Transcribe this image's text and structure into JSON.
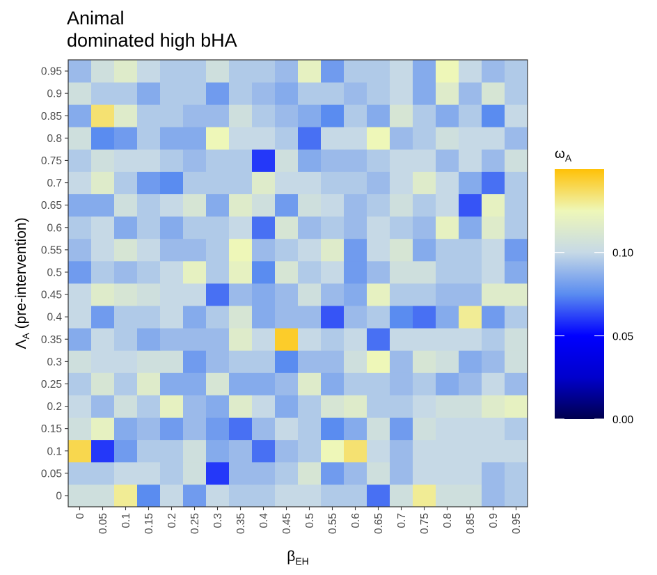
{
  "chart_data": {
    "type": "heatmap",
    "title": [
      "Animal",
      "dominated high bHA"
    ],
    "xlabel": {
      "main": "β",
      "sub": "EH"
    },
    "ylabel": {
      "main": "Λ",
      "sub": "A",
      "rest": " (pre-intervention)"
    },
    "x_categories": [
      "0",
      "0.05",
      "0.1",
      "0.15",
      "0.2",
      "0.25",
      "0.3",
      "0.35",
      "0.4",
      "0.45",
      "0.5",
      "0.55",
      "0.6",
      "0.65",
      "0.7",
      "0.75",
      "0.8",
      "0.85",
      "0.9",
      "0.95"
    ],
    "y_categories": [
      "0",
      "0.05",
      "0.1",
      "0.15",
      "0.2",
      "0.25",
      "0.3",
      "0.35",
      "0.4",
      "0.45",
      "0.5",
      "0.55",
      "0.6",
      "0.65",
      "0.7",
      "0.75",
      "0.8",
      "0.85",
      "0.9",
      "0.95"
    ],
    "values": [
      [
        0.105,
        0.105,
        0.13,
        0.075,
        0.1,
        0.08,
        0.1,
        0.095,
        0.095,
        0.1,
        0.1,
        0.095,
        0.095,
        0.07,
        0.105,
        0.13,
        0.105,
        0.105,
        0.09,
        0.095
      ],
      [
        0.095,
        0.095,
        0.1,
        0.1,
        0.095,
        0.105,
        0.06,
        0.09,
        0.09,
        0.095,
        0.11,
        0.08,
        0.09,
        0.105,
        0.09,
        0.1,
        0.1,
        0.1,
        0.09,
        0.095
      ],
      [
        0.14,
        0.06,
        0.08,
        0.095,
        0.095,
        0.105,
        0.085,
        0.09,
        0.07,
        0.09,
        0.095,
        0.125,
        0.135,
        0.1,
        0.09,
        0.1,
        0.1,
        0.1,
        0.1,
        0.1
      ],
      [
        0.105,
        0.12,
        0.085,
        0.09,
        0.08,
        0.09,
        0.08,
        0.07,
        0.09,
        0.1,
        0.095,
        0.075,
        0.085,
        0.105,
        0.08,
        0.105,
        0.1,
        0.1,
        0.1,
        0.095
      ],
      [
        0.1,
        0.09,
        0.105,
        0.095,
        0.12,
        0.09,
        0.085,
        0.115,
        0.1,
        0.085,
        0.095,
        0.11,
        0.115,
        0.095,
        0.095,
        0.1,
        0.105,
        0.105,
        0.115,
        0.12
      ],
      [
        0.095,
        0.11,
        0.095,
        0.115,
        0.085,
        0.085,
        0.11,
        0.085,
        0.085,
        0.09,
        0.115,
        0.085,
        0.095,
        0.095,
        0.09,
        0.095,
        0.085,
        0.09,
        0.1,
        0.09
      ],
      [
        0.105,
        0.1,
        0.1,
        0.105,
        0.105,
        0.08,
        0.09,
        0.095,
        0.095,
        0.075,
        0.09,
        0.09,
        0.105,
        0.125,
        0.09,
        0.11,
        0.105,
        0.085,
        0.09,
        0.105
      ],
      [
        0.085,
        0.1,
        0.095,
        0.085,
        0.09,
        0.09,
        0.09,
        0.115,
        0.1,
        0.145,
        0.1,
        0.095,
        0.1,
        0.07,
        0.1,
        0.1,
        0.1,
        0.1,
        0.095,
        0.105
      ],
      [
        0.1,
        0.08,
        0.095,
        0.095,
        0.1,
        0.085,
        0.095,
        0.11,
        0.085,
        0.09,
        0.09,
        0.065,
        0.09,
        0.095,
        0.075,
        0.07,
        0.085,
        0.13,
        0.08,
        0.095
      ],
      [
        0.1,
        0.115,
        0.11,
        0.105,
        0.1,
        0.1,
        0.07,
        0.09,
        0.085,
        0.09,
        0.105,
        0.09,
        0.085,
        0.12,
        0.095,
        0.095,
        0.09,
        0.09,
        0.115,
        0.115
      ],
      [
        0.08,
        0.095,
        0.09,
        0.095,
        0.1,
        0.12,
        0.095,
        0.12,
        0.075,
        0.11,
        0.095,
        0.1,
        0.08,
        0.09,
        0.105,
        0.105,
        0.095,
        0.095,
        0.1,
        0.085
      ],
      [
        0.09,
        0.1,
        0.11,
        0.1,
        0.09,
        0.09,
        0.095,
        0.125,
        0.09,
        0.095,
        0.1,
        0.115,
        0.08,
        0.1,
        0.11,
        0.085,
        0.095,
        0.095,
        0.1,
        0.08
      ],
      [
        0.095,
        0.1,
        0.085,
        0.095,
        0.085,
        0.095,
        0.095,
        0.1,
        0.07,
        0.11,
        0.09,
        0.095,
        0.09,
        0.1,
        0.095,
        0.09,
        0.12,
        0.085,
        0.115,
        0.095
      ],
      [
        0.085,
        0.085,
        0.105,
        0.095,
        0.1,
        0.11,
        0.085,
        0.115,
        0.105,
        0.08,
        0.105,
        0.1,
        0.09,
        0.095,
        0.105,
        0.095,
        0.1,
        0.065,
        0.12,
        0.095
      ],
      [
        0.1,
        0.115,
        0.095,
        0.08,
        0.075,
        0.095,
        0.095,
        0.095,
        0.115,
        0.1,
        0.1,
        0.095,
        0.095,
        0.09,
        0.1,
        0.115,
        0.1,
        0.085,
        0.07,
        0.095
      ],
      [
        0.095,
        0.105,
        0.1,
        0.1,
        0.095,
        0.09,
        0.095,
        0.095,
        0.06,
        0.105,
        0.085,
        0.09,
        0.09,
        0.095,
        0.1,
        0.1,
        0.09,
        0.1,
        0.09,
        0.105
      ],
      [
        0.105,
        0.075,
        0.08,
        0.095,
        0.085,
        0.085,
        0.125,
        0.1,
        0.1,
        0.095,
        0.07,
        0.1,
        0.1,
        0.125,
        0.09,
        0.095,
        0.105,
        0.1,
        0.1,
        0.09
      ],
      [
        0.085,
        0.135,
        0.115,
        0.095,
        0.095,
        0.09,
        0.09,
        0.105,
        0.095,
        0.09,
        0.085,
        0.075,
        0.095,
        0.085,
        0.11,
        0.095,
        0.085,
        0.095,
        0.075,
        0.1
      ],
      [
        0.105,
        0.095,
        0.095,
        0.085,
        0.095,
        0.095,
        0.08,
        0.095,
        0.09,
        0.085,
        0.095,
        0.095,
        0.09,
        0.095,
        0.1,
        0.085,
        0.115,
        0.09,
        0.11,
        0.095
      ],
      [
        0.09,
        0.105,
        0.115,
        0.1,
        0.095,
        0.095,
        0.105,
        0.095,
        0.095,
        0.09,
        0.12,
        0.08,
        0.095,
        0.095,
        0.1,
        0.085,
        0.125,
        0.1,
        0.09,
        0.095
      ]
    ],
    "legend": {
      "title": {
        "main": "ω",
        "sub": "A"
      },
      "breaks": [
        {
          "value": 0.0,
          "label": "0.00"
        },
        {
          "value": 0.05,
          "label": "0.05"
        },
        {
          "value": 0.1,
          "label": "0.10"
        }
      ],
      "range": [
        0.0,
        0.15
      ],
      "gradient_stops": [
        {
          "value": 0.0,
          "color": "#00004d"
        },
        {
          "value": 0.025,
          "color": "#0000cc"
        },
        {
          "value": 0.05,
          "color": "#0000ff"
        },
        {
          "value": 0.075,
          "color": "#5a8cf0"
        },
        {
          "value": 0.1,
          "color": "#c6d9e6"
        },
        {
          "value": 0.125,
          "color": "#eef7b8"
        },
        {
          "value": 0.15,
          "color": "#ffc107"
        }
      ]
    },
    "grid": false
  }
}
